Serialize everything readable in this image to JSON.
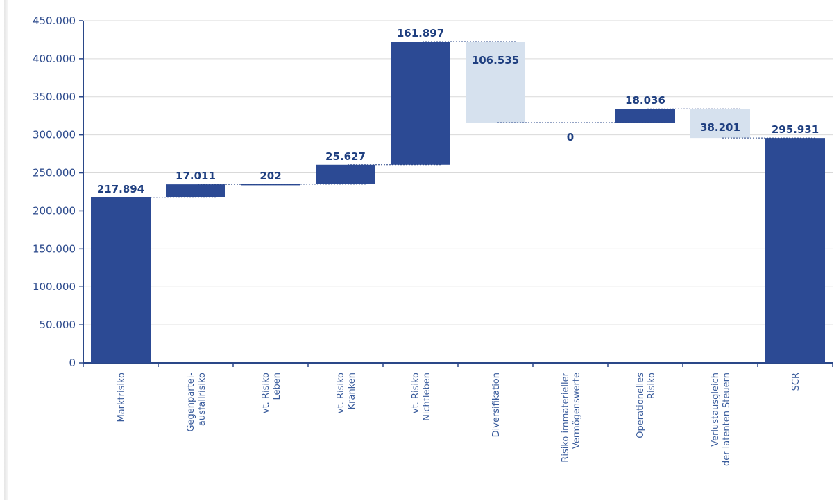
{
  "chart_data": {
    "type": "waterfall",
    "categories": [
      [
        "Marktrisiko"
      ],
      [
        "Gegenpartei-",
        "ausfallrisiko"
      ],
      [
        "vt. Risiko",
        "Leben"
      ],
      [
        "vt. Risiko",
        "Kranken"
      ],
      [
        "vt. Risiko",
        "Nichtleben"
      ],
      [
        "Diversifikation"
      ],
      [
        "Risiko immaterieller",
        "Vermögenswerte"
      ],
      [
        "Operationelles",
        "Risiko"
      ],
      [
        "Verlustausgleich",
        "der latenten Steuern"
      ],
      [
        "SCR"
      ]
    ],
    "steps": [
      {
        "kind": "total",
        "base": 0,
        "top": 217894,
        "label": "217.894"
      },
      {
        "kind": "increase",
        "base": 217894,
        "top": 234905,
        "label": "17.011"
      },
      {
        "kind": "increase",
        "base": 234905,
        "top": 235107,
        "label": "202"
      },
      {
        "kind": "increase",
        "base": 235107,
        "top": 260734,
        "label": "25.627"
      },
      {
        "kind": "increase",
        "base": 260734,
        "top": 422631,
        "label": "161.897"
      },
      {
        "kind": "decrease",
        "base": 316096,
        "top": 422631,
        "label": "106.535"
      },
      {
        "kind": "increase",
        "base": 316096,
        "top": 316096,
        "label": "0"
      },
      {
        "kind": "increase",
        "base": 316096,
        "top": 334132,
        "label": "18.036"
      },
      {
        "kind": "decrease",
        "base": 295931,
        "top": 334132,
        "label": "38.201"
      },
      {
        "kind": "total",
        "base": 0,
        "top": 295931,
        "label": "295.931"
      }
    ],
    "ylim": [
      0,
      450000
    ],
    "yticks": [
      0,
      50000,
      100000,
      150000,
      200000,
      250000,
      300000,
      350000,
      400000,
      450000
    ],
    "ytick_labels": [
      "0",
      "50.000",
      "100.000",
      "150.000",
      "200.000",
      "250.000",
      "300.000",
      "350.000",
      "400.000",
      "450.000"
    ],
    "grid": true,
    "colors": {
      "increase": "#2c4a94",
      "total": "#2c4a94",
      "decrease": "#d6e1ee",
      "axis": "#2a4788",
      "grid": "#d9d9d9",
      "connector": "#2a4788"
    }
  }
}
